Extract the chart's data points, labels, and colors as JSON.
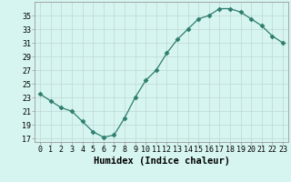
{
  "x": [
    0,
    1,
    2,
    3,
    4,
    5,
    6,
    7,
    8,
    9,
    10,
    11,
    12,
    13,
    14,
    15,
    16,
    17,
    18,
    19,
    20,
    21,
    22,
    23
  ],
  "y": [
    23.5,
    22.5,
    21.5,
    21.0,
    19.5,
    18.0,
    17.2,
    17.5,
    20.0,
    23.0,
    25.5,
    27.0,
    29.5,
    31.5,
    33.0,
    34.5,
    35.0,
    36.0,
    36.0,
    35.5,
    34.5,
    33.5,
    32.0,
    31.0
  ],
  "line_color": "#2e7d6e",
  "marker": "D",
  "marker_size": 2.5,
  "bg_color": "#d6f5f0",
  "grid_color": "#c0d8d4",
  "xlabel": "Humidex (Indice chaleur)",
  "xlim": [
    -0.5,
    23.5
  ],
  "ylim": [
    16.5,
    37
  ],
  "yticks": [
    17,
    19,
    21,
    23,
    25,
    27,
    29,
    31,
    33,
    35
  ],
  "xticks": [
    0,
    1,
    2,
    3,
    4,
    5,
    6,
    7,
    8,
    9,
    10,
    11,
    12,
    13,
    14,
    15,
    16,
    17,
    18,
    19,
    20,
    21,
    22,
    23
  ],
  "tick_label_fontsize": 6,
  "xlabel_fontsize": 7.5,
  "spine_color": "#999999"
}
